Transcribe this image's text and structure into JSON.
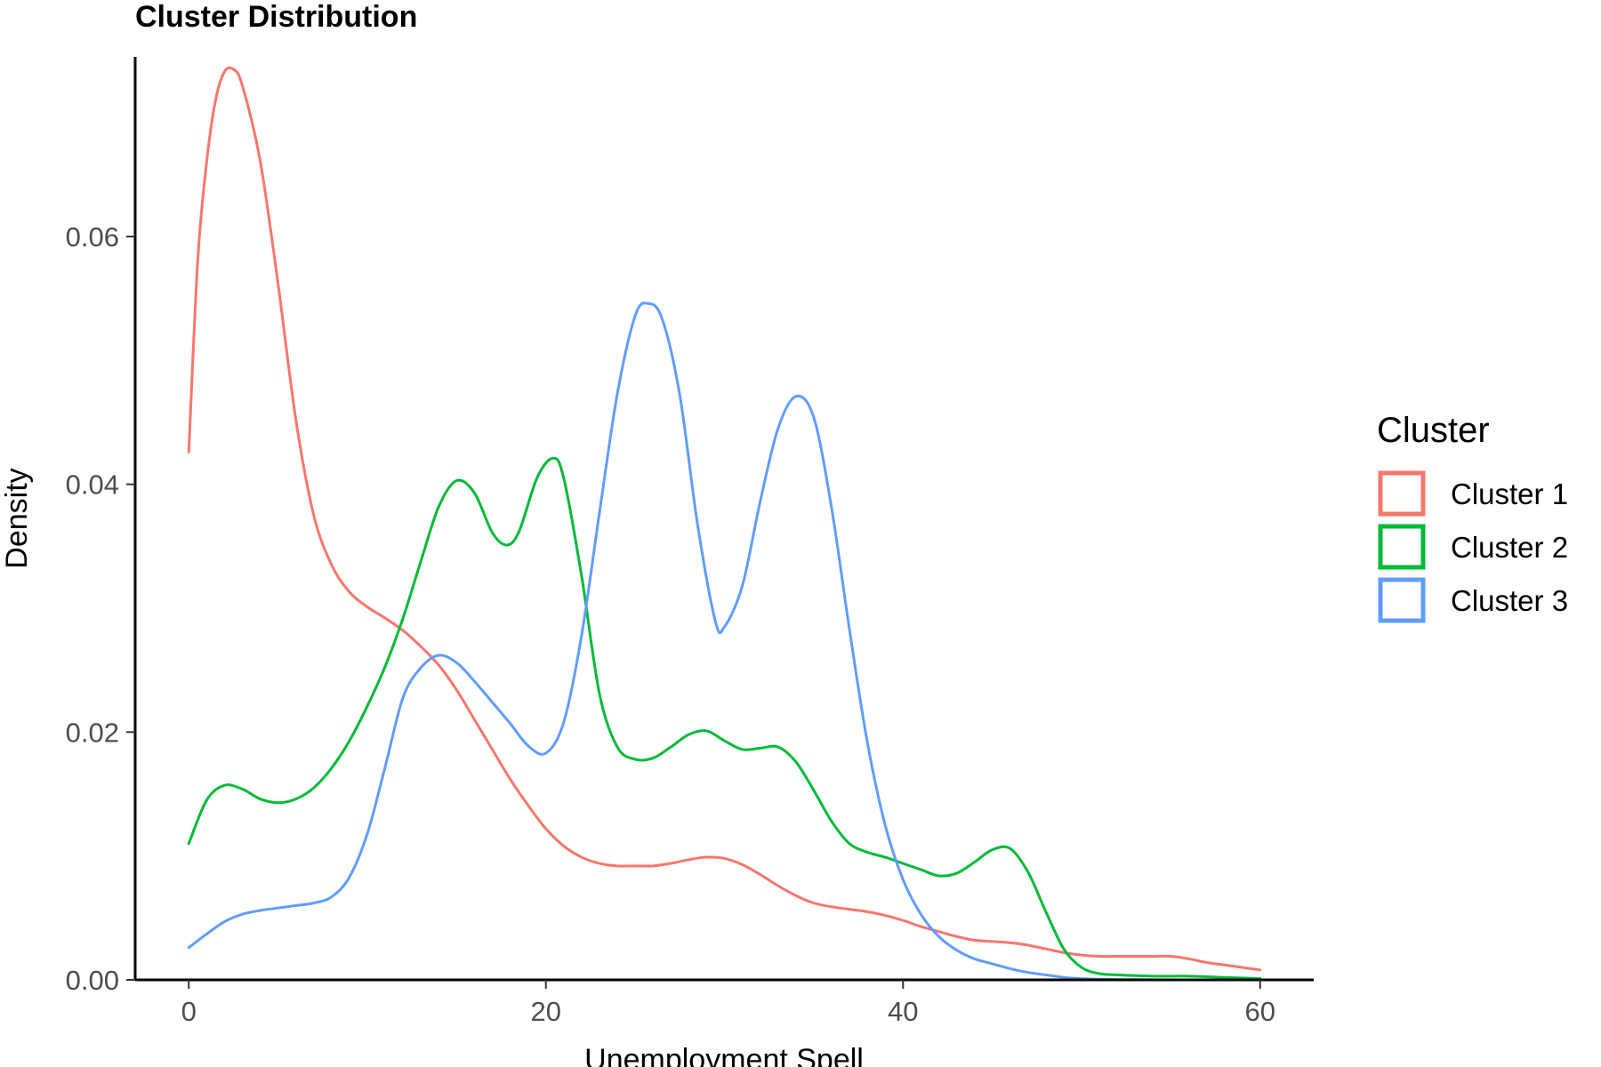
{
  "chart_data": {
    "type": "line",
    "title": "Cluster Distribution",
    "xlabel": "Unemployment Spell",
    "ylabel": "Density",
    "xlim": [
      -3,
      63
    ],
    "ylim": [
      0,
      0.0745
    ],
    "x_ticks": [
      0,
      20,
      40,
      60
    ],
    "x_tick_labels": [
      "0",
      "20",
      "40",
      "60"
    ],
    "y_ticks": [
      0,
      0.02,
      0.04,
      0.06
    ],
    "y_tick_labels": [
      "0.00",
      "0.02",
      "0.04",
      "0.06"
    ],
    "grid": false,
    "legend": {
      "title": "Cluster",
      "position": "right"
    },
    "series": [
      {
        "name": "Cluster 1",
        "color": "#F8766D",
        "points": [
          [
            0,
            0.0426
          ],
          [
            0.5,
            0.058
          ],
          [
            1,
            0.066
          ],
          [
            1.5,
            0.071
          ],
          [
            2,
            0.0733
          ],
          [
            2.5,
            0.0735
          ],
          [
            3,
            0.0722
          ],
          [
            4,
            0.0661
          ],
          [
            5,
            0.0562
          ],
          [
            6,
            0.0452
          ],
          [
            7,
            0.0375
          ],
          [
            8,
            0.0335
          ],
          [
            9,
            0.0313
          ],
          [
            10,
            0.0301
          ],
          [
            11,
            0.0292
          ],
          [
            12,
            0.0282
          ],
          [
            13,
            0.0269
          ],
          [
            14,
            0.0254
          ],
          [
            15,
            0.0234
          ],
          [
            16,
            0.021
          ],
          [
            17,
            0.0186
          ],
          [
            18,
            0.0162
          ],
          [
            19,
            0.0141
          ],
          [
            20,
            0.0122
          ],
          [
            21,
            0.0108
          ],
          [
            22,
            0.0099
          ],
          [
            23,
            0.0094
          ],
          [
            24,
            0.0092
          ],
          [
            25,
            0.0092
          ],
          [
            26,
            0.0092
          ],
          [
            27,
            0.0094
          ],
          [
            28,
            0.0097
          ],
          [
            29,
            0.0099
          ],
          [
            30,
            0.0098
          ],
          [
            31,
            0.0093
          ],
          [
            32,
            0.0085
          ],
          [
            33,
            0.0076
          ],
          [
            34,
            0.0068
          ],
          [
            35,
            0.0062
          ],
          [
            36,
            0.0059
          ],
          [
            37,
            0.0057
          ],
          [
            38,
            0.0055
          ],
          [
            39,
            0.0052
          ],
          [
            40,
            0.0048
          ],
          [
            41,
            0.0043
          ],
          [
            42,
            0.0039
          ],
          [
            43,
            0.0035
          ],
          [
            44,
            0.0032
          ],
          [
            45,
            0.0031
          ],
          [
            46,
            0.003
          ],
          [
            47,
            0.0028
          ],
          [
            48,
            0.0025
          ],
          [
            49,
            0.0022
          ],
          [
            50,
            0.002
          ],
          [
            51,
            0.0019
          ],
          [
            52,
            0.0019
          ],
          [
            53,
            0.0019
          ],
          [
            54,
            0.0019
          ],
          [
            55,
            0.0019
          ],
          [
            56,
            0.0017
          ],
          [
            57,
            0.0014
          ],
          [
            58,
            0.0012
          ],
          [
            59,
            0.001
          ],
          [
            60,
            0.0008
          ]
        ]
      },
      {
        "name": "Cluster 2",
        "color": "#00BA38",
        "points": [
          [
            0,
            0.011
          ],
          [
            1,
            0.0145
          ],
          [
            2,
            0.0157
          ],
          [
            3,
            0.0154
          ],
          [
            4,
            0.0146
          ],
          [
            5,
            0.0143
          ],
          [
            6,
            0.0146
          ],
          [
            7,
            0.0155
          ],
          [
            8,
            0.0171
          ],
          [
            9,
            0.0193
          ],
          [
            10,
            0.0221
          ],
          [
            11,
            0.0253
          ],
          [
            12,
            0.0292
          ],
          [
            13,
            0.0338
          ],
          [
            14,
            0.0382
          ],
          [
            15,
            0.0403
          ],
          [
            16,
            0.0393
          ],
          [
            17,
            0.0361
          ],
          [
            17.8,
            0.0351
          ],
          [
            18.5,
            0.0362
          ],
          [
            19.5,
            0.0405
          ],
          [
            20.4,
            0.0421
          ],
          [
            21,
            0.0405
          ],
          [
            22,
            0.0326
          ],
          [
            23,
            0.0231
          ],
          [
            24,
            0.0188
          ],
          [
            25,
            0.0178
          ],
          [
            26,
            0.0179
          ],
          [
            27,
            0.0188
          ],
          [
            28,
            0.0198
          ],
          [
            29,
            0.0201
          ],
          [
            30,
            0.0193
          ],
          [
            31,
            0.0186
          ],
          [
            32,
            0.0187
          ],
          [
            33,
            0.0188
          ],
          [
            34,
            0.0176
          ],
          [
            35,
            0.0153
          ],
          [
            36,
            0.0128
          ],
          [
            37,
            0.011
          ],
          [
            38,
            0.0103
          ],
          [
            39,
            0.0099
          ],
          [
            40,
            0.0094
          ],
          [
            41,
            0.0089
          ],
          [
            42,
            0.0084
          ],
          [
            43,
            0.0086
          ],
          [
            44,
            0.0095
          ],
          [
            45,
            0.0105
          ],
          [
            46,
            0.0106
          ],
          [
            47,
            0.0087
          ],
          [
            48,
            0.0055
          ],
          [
            49,
            0.0025
          ],
          [
            50,
            0.001
          ],
          [
            51,
            0.0005
          ],
          [
            52,
            0.0004
          ],
          [
            54,
            0.0003
          ],
          [
            56,
            0.0003
          ],
          [
            58,
            0.0002
          ],
          [
            60,
            0.0001
          ]
        ]
      },
      {
        "name": "Cluster 3",
        "color": "#619CFF",
        "points": [
          [
            0,
            0.0026
          ],
          [
            1,
            0.0037
          ],
          [
            2,
            0.0047
          ],
          [
            3,
            0.0053
          ],
          [
            4,
            0.0056
          ],
          [
            5,
            0.0058
          ],
          [
            6,
            0.006
          ],
          [
            7,
            0.0062
          ],
          [
            8,
            0.0067
          ],
          [
            9,
            0.0083
          ],
          [
            10,
            0.0118
          ],
          [
            11,
            0.0172
          ],
          [
            12,
            0.0228
          ],
          [
            13,
            0.0252
          ],
          [
            14,
            0.0262
          ],
          [
            15,
            0.0256
          ],
          [
            16,
            0.0241
          ],
          [
            17,
            0.0224
          ],
          [
            18,
            0.0207
          ],
          [
            19,
            0.0189
          ],
          [
            20,
            0.0183
          ],
          [
            21,
            0.0208
          ],
          [
            22,
            0.0278
          ],
          [
            23,
            0.0377
          ],
          [
            24,
            0.0473
          ],
          [
            25,
            0.0536
          ],
          [
            25.7,
            0.0546
          ],
          [
            26.5,
            0.0534
          ],
          [
            27.5,
            0.0472
          ],
          [
            28.5,
            0.0367
          ],
          [
            29.5,
            0.0289
          ],
          [
            30,
            0.0285
          ],
          [
            31,
            0.0318
          ],
          [
            32,
            0.0386
          ],
          [
            33,
            0.0445
          ],
          [
            34,
            0.0471
          ],
          [
            35,
            0.0454
          ],
          [
            36,
            0.0381
          ],
          [
            37,
            0.0283
          ],
          [
            38,
            0.0192
          ],
          [
            39,
            0.0125
          ],
          [
            40,
            0.0081
          ],
          [
            41,
            0.0053
          ],
          [
            42,
            0.0035
          ],
          [
            43,
            0.0024
          ],
          [
            44,
            0.0017
          ],
          [
            45,
            0.0013
          ],
          [
            46,
            0.0009
          ],
          [
            47,
            0.0006
          ],
          [
            48,
            0.0004
          ],
          [
            49,
            0.0002
          ],
          [
            50,
            0.0001
          ],
          [
            51,
            5e-05
          ],
          [
            52,
            3e-05
          ],
          [
            54,
            1e-05
          ],
          [
            56,
            0
          ],
          [
            58,
            0
          ],
          [
            60,
            0
          ]
        ]
      }
    ]
  }
}
